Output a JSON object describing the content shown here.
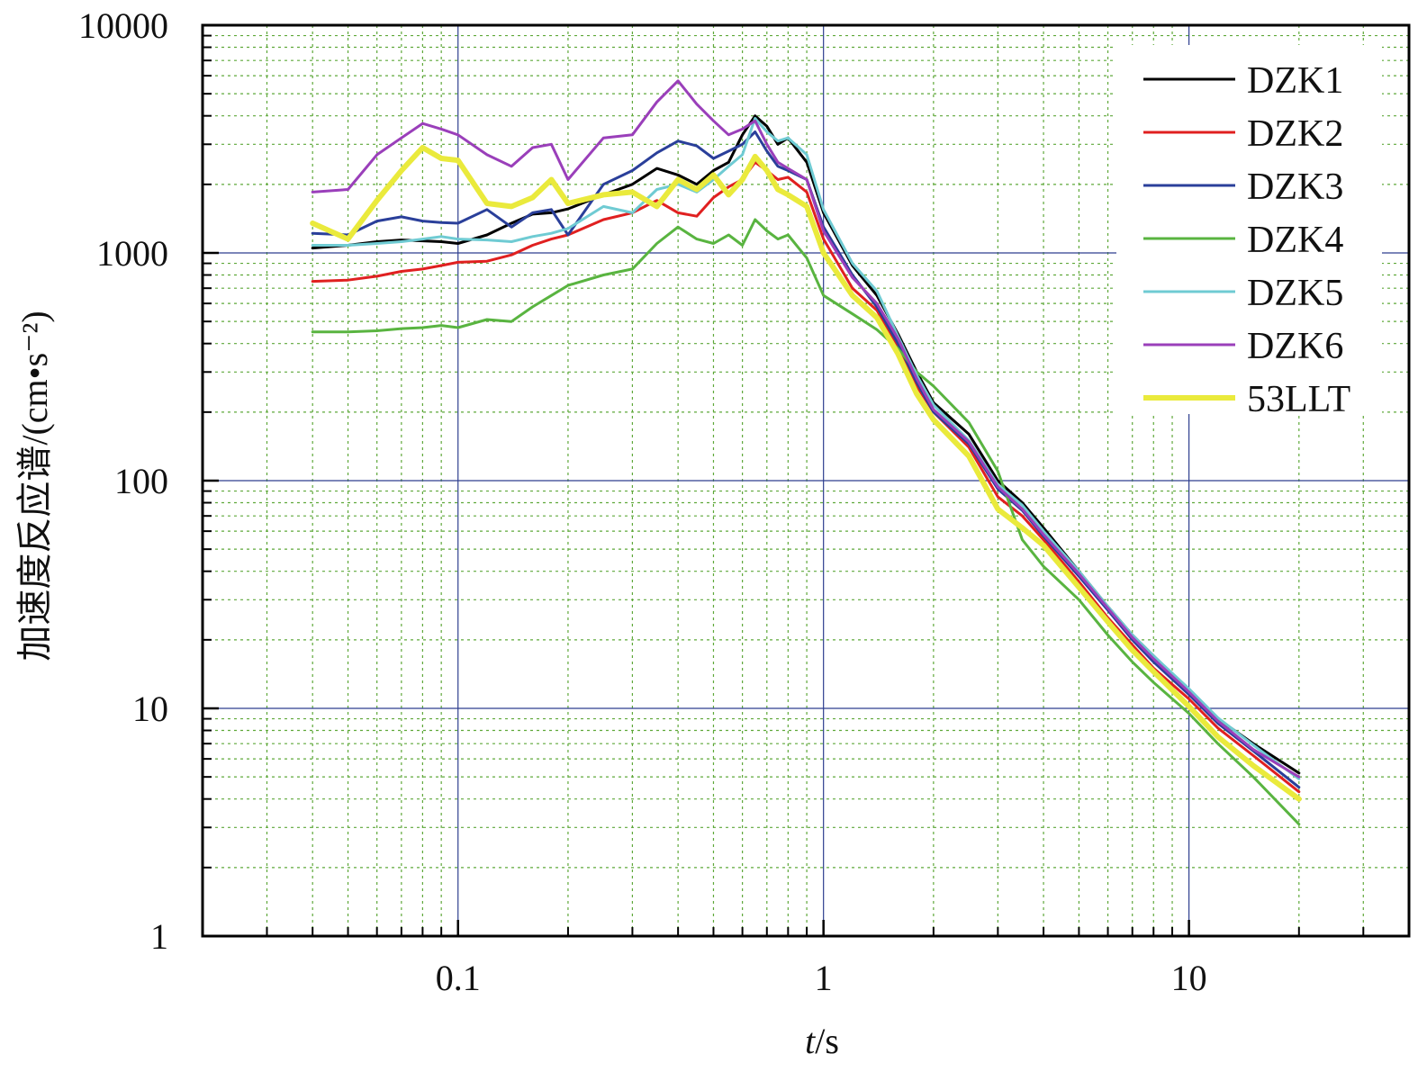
{
  "chart_data": {
    "type": "line",
    "title": "",
    "xlabel": {
      "italic": "t",
      "rest": "/s"
    },
    "ylabel": "加速度反应谱/(cm•s⁻²)",
    "x_scale": "log",
    "y_scale": "log",
    "xlim": [
      0.02,
      40
    ],
    "ylim": [
      1,
      10000
    ],
    "x_ticks": [
      {
        "value": 0.1,
        "label": "0.1"
      },
      {
        "value": 1,
        "label": "1"
      },
      {
        "value": 10,
        "label": "10"
      }
    ],
    "y_ticks": [
      {
        "value": 1,
        "label": "1"
      },
      {
        "value": 10,
        "label": "10"
      },
      {
        "value": 100,
        "label": "100"
      },
      {
        "value": 1000,
        "label": "1000"
      },
      {
        "value": 10000,
        "label": "10000"
      }
    ],
    "grid": {
      "major": true,
      "minor": true,
      "major_color": "#2e3f8f",
      "minor_color": "#5fa83a"
    },
    "legend": {
      "position": "top-right"
    },
    "x": [
      0.04,
      0.05,
      0.06,
      0.07,
      0.08,
      0.09,
      0.1,
      0.12,
      0.14,
      0.16,
      0.18,
      0.2,
      0.25,
      0.3,
      0.35,
      0.4,
      0.45,
      0.5,
      0.55,
      0.6,
      0.65,
      0.7,
      0.75,
      0.8,
      0.9,
      1.0,
      1.2,
      1.4,
      1.6,
      1.8,
      2.0,
      2.5,
      3.0,
      3.5,
      4.0,
      5.0,
      6.0,
      7.0,
      8.0,
      10.0,
      12.0,
      15.0,
      20.0
    ],
    "series": [
      {
        "name": "DZK1",
        "color": "#000000",
        "width": 3,
        "values": [
          1050,
          1080,
          1120,
          1140,
          1130,
          1120,
          1100,
          1200,
          1350,
          1480,
          1500,
          1560,
          1800,
          2000,
          2350,
          2200,
          2000,
          2300,
          2500,
          3300,
          4000,
          3600,
          3000,
          3200,
          2500,
          1500,
          880,
          650,
          440,
          300,
          220,
          160,
          100,
          80,
          62,
          40,
          28,
          21,
          17,
          12,
          9,
          7,
          5.2
        ]
      },
      {
        "name": "DZK2",
        "color": "#e02020",
        "width": 3,
        "values": [
          750,
          760,
          790,
          830,
          850,
          880,
          910,
          920,
          980,
          1080,
          1150,
          1200,
          1400,
          1500,
          1700,
          1500,
          1450,
          1750,
          1950,
          2100,
          2500,
          2300,
          2100,
          2150,
          1850,
          1150,
          700,
          560,
          390,
          260,
          200,
          140,
          85,
          70,
          55,
          36,
          25,
          19,
          15,
          11,
          8.2,
          6.2,
          4.3
        ]
      },
      {
        "name": "DZK3",
        "color": "#2a3f9a",
        "width": 3,
        "values": [
          1220,
          1200,
          1380,
          1440,
          1380,
          1360,
          1350,
          1550,
          1300,
          1500,
          1550,
          1200,
          2000,
          2300,
          2750,
          3100,
          2950,
          2600,
          2800,
          3000,
          3400,
          2800,
          2400,
          2300,
          2100,
          1300,
          800,
          580,
          400,
          270,
          200,
          145,
          92,
          74,
          57,
          38,
          27,
          20,
          16,
          11.5,
          8.6,
          6.5,
          4.5
        ]
      },
      {
        "name": "DZK4",
        "color": "#59b440",
        "width": 3,
        "values": [
          450,
          450,
          455,
          465,
          470,
          480,
          470,
          510,
          500,
          580,
          650,
          720,
          800,
          850,
          1100,
          1300,
          1150,
          1100,
          1200,
          1080,
          1400,
          1250,
          1150,
          1200,
          950,
          650,
          540,
          460,
          380,
          300,
          260,
          180,
          110,
          55,
          42,
          30,
          21,
          16,
          13,
          9.5,
          7,
          5,
          3.1
        ]
      },
      {
        "name": "DZK5",
        "color": "#6fcbd3",
        "width": 3,
        "values": [
          1080,
          1080,
          1100,
          1120,
          1150,
          1180,
          1150,
          1140,
          1120,
          1180,
          1220,
          1280,
          1600,
          1500,
          1900,
          2000,
          1850,
          2100,
          2400,
          2700,
          3900,
          3400,
          3100,
          3200,
          2700,
          1550,
          900,
          680,
          430,
          290,
          215,
          150,
          96,
          78,
          60,
          40,
          28,
          21,
          17,
          12.2,
          9.1,
          6.9,
          4.9
        ]
      },
      {
        "name": "DZK6",
        "color": "#9a3fba",
        "width": 3,
        "values": [
          1850,
          1900,
          2700,
          3200,
          3700,
          3500,
          3300,
          2700,
          2400,
          2900,
          3000,
          2100,
          3200,
          3300,
          4600,
          5700,
          4500,
          3800,
          3300,
          3500,
          3800,
          3000,
          2500,
          2350,
          2100,
          1250,
          780,
          600,
          420,
          280,
          205,
          148,
          94,
          75,
          58,
          39,
          27.5,
          20.5,
          16.5,
          11.8,
          8.8,
          6.6,
          5.0
        ]
      },
      {
        "name": "53LLT",
        "color": "#eaea3c",
        "width": 6,
        "values": [
          1350,
          1150,
          1700,
          2300,
          2900,
          2600,
          2550,
          1650,
          1600,
          1750,
          2100,
          1650,
          1800,
          1850,
          1600,
          2100,
          1900,
          2200,
          1800,
          2100,
          2650,
          2300,
          1900,
          1800,
          1600,
          1000,
          650,
          520,
          360,
          240,
          185,
          128,
          75,
          62,
          52,
          34,
          24,
          18,
          14.5,
          10.2,
          7.5,
          5.6,
          4.0
        ]
      }
    ]
  }
}
